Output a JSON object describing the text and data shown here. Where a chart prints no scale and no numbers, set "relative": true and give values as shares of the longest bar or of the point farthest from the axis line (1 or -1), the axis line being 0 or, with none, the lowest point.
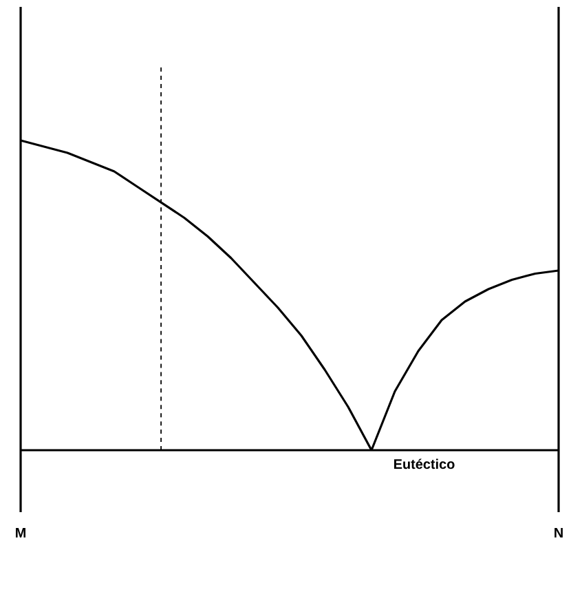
{
  "chart_data": {
    "type": "line",
    "relative": true,
    "marker": "none",
    "line_style": "solid",
    "categories": [
      "M",
      null,
      null,
      null,
      null,
      null,
      null,
      null,
      null,
      null,
      null,
      null,
      null,
      null,
      null,
      null,
      null,
      null,
      null,
      null,
      null,
      null,
      null,
      "N"
    ],
    "series": [
      {
        "color": "#000000",
        "values": [
          1,
          0.98,
          0.96,
          0.93,
          0.9,
          0.85,
          0.8,
          0.75,
          0.69,
          0.62,
          0.54,
          0.46,
          0.37,
          0.26,
          0.14,
          0,
          null,
          null,
          null,
          null,
          null,
          null,
          null,
          null
        ]
      },
      {
        "color": "#000000",
        "values": [
          null,
          null,
          null,
          null,
          null,
          null,
          null,
          null,
          null,
          null,
          null,
          null,
          null,
          null,
          null,
          0,
          0.19,
          0.32,
          0.42,
          0.48,
          0.52,
          0.55,
          0.57,
          0.58
        ]
      }
    ],
    "ref_lines": [
      {
        "axis": "y",
        "value": 0,
        "label": "Eutéctico",
        "color": "#000000"
      }
    ]
  }
}
